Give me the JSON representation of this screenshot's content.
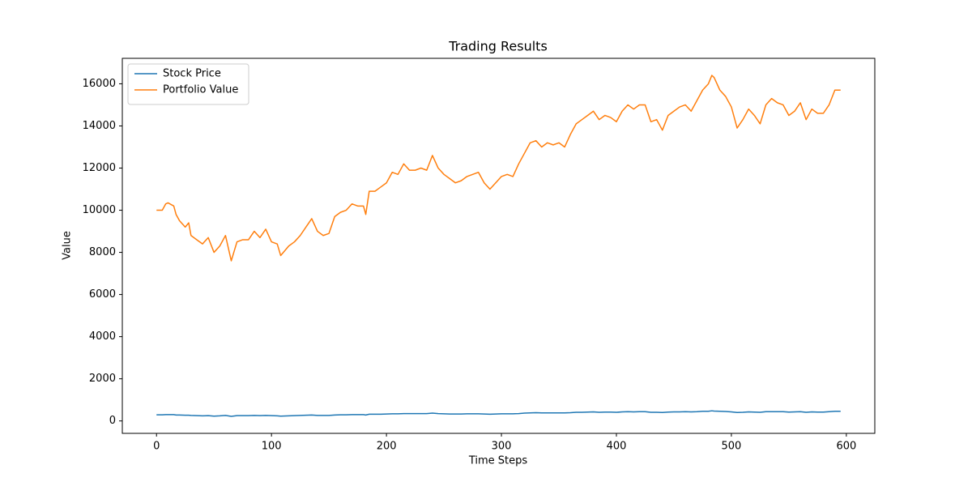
{
  "chart_data": {
    "type": "line",
    "title": "Trading Results",
    "xlabel": "Time Steps",
    "ylabel": "Value",
    "x": [
      0,
      5,
      8,
      10,
      15,
      17,
      20,
      25,
      28,
      30,
      35,
      40,
      45,
      50,
      55,
      60,
      65,
      70,
      75,
      80,
      85,
      90,
      95,
      100,
      105,
      108,
      115,
      120,
      125,
      130,
      135,
      140,
      145,
      150,
      155,
      160,
      165,
      170,
      175,
      180,
      182,
      185,
      190,
      195,
      200,
      205,
      210,
      215,
      220,
      225,
      230,
      235,
      240,
      245,
      250,
      255,
      260,
      265,
      270,
      275,
      280,
      285,
      290,
      295,
      300,
      305,
      310,
      315,
      320,
      325,
      330,
      335,
      340,
      345,
      350,
      355,
      360,
      365,
      370,
      375,
      380,
      385,
      390,
      395,
      400,
      405,
      410,
      415,
      420,
      425,
      430,
      435,
      440,
      445,
      450,
      455,
      460,
      465,
      470,
      475,
      480,
      483,
      485,
      490,
      495,
      500,
      505,
      510,
      515,
      520,
      525,
      530,
      535,
      540,
      545,
      550,
      555,
      560,
      565,
      570,
      575,
      580,
      585,
      590,
      595
    ],
    "series": [
      {
        "name": "Stock Price",
        "color": "#1f77b4",
        "values": [
          290,
          290,
          300,
          300,
          300,
          280,
          280,
          270,
          270,
          260,
          250,
          240,
          250,
          230,
          240,
          260,
          220,
          250,
          250,
          250,
          260,
          250,
          260,
          250,
          240,
          230,
          240,
          250,
          260,
          270,
          280,
          260,
          260,
          260,
          280,
          290,
          290,
          300,
          300,
          300,
          280,
          320,
          320,
          320,
          330,
          340,
          340,
          350,
          350,
          350,
          350,
          350,
          370,
          350,
          340,
          330,
          330,
          330,
          340,
          340,
          340,
          330,
          320,
          330,
          340,
          340,
          340,
          350,
          370,
          380,
          390,
          380,
          380,
          380,
          380,
          380,
          390,
          410,
          410,
          420,
          430,
          410,
          420,
          420,
          410,
          430,
          440,
          430,
          440,
          440,
          410,
          410,
          400,
          420,
          430,
          430,
          440,
          430,
          440,
          460,
          460,
          480,
          470,
          460,
          450,
          430,
          400,
          410,
          430,
          420,
          410,
          440,
          440,
          440,
          440,
          420,
          430,
          440,
          410,
          430,
          420,
          420,
          440,
          460,
          460
        ]
      },
      {
        "name": "Portfolio Value",
        "color": "#ff7f0e",
        "values": [
          10000,
          10000,
          10300,
          10350,
          10200,
          9800,
          9500,
          9200,
          9400,
          8800,
          8600,
          8400,
          8700,
          8000,
          8300,
          8800,
          7600,
          8500,
          8600,
          8600,
          9000,
          8700,
          9100,
          8500,
          8400,
          7850,
          8300,
          8500,
          8800,
          9200,
          9600,
          9000,
          8800,
          8900,
          9700,
          9900,
          10000,
          10300,
          10200,
          10200,
          9800,
          10900,
          10900,
          11100,
          11300,
          11800,
          11700,
          12200,
          11900,
          11900,
          12000,
          11900,
          12600,
          12000,
          11700,
          11500,
          11300,
          11400,
          11600,
          11700,
          11800,
          11300,
          11000,
          11300,
          11600,
          11700,
          11600,
          12200,
          12700,
          13200,
          13300,
          13000,
          13200,
          13100,
          13200,
          13000,
          13600,
          14100,
          14300,
          14500,
          14700,
          14300,
          14500,
          14400,
          14200,
          14700,
          15000,
          14800,
          15000,
          15000,
          14200,
          14300,
          13800,
          14500,
          14700,
          14900,
          15000,
          14700,
          15200,
          15700,
          16000,
          16400,
          16300,
          15700,
          15400,
          14900,
          13900,
          14300,
          14800,
          14500,
          14100,
          15000,
          15300,
          15100,
          15000,
          14500,
          14700,
          15100,
          14300,
          14800,
          14600,
          14600,
          15000,
          15700,
          15700
        ]
      }
    ],
    "xlim": [
      -29.75,
      624.75
    ],
    "xticks": [
      0,
      100,
      200,
      300,
      400,
      500,
      600
    ],
    "ylim": [
      -589,
      17209
    ],
    "yticks": [
      0,
      2000,
      4000,
      6000,
      8000,
      10000,
      12000,
      14000,
      16000
    ],
    "legend": "upper left"
  }
}
